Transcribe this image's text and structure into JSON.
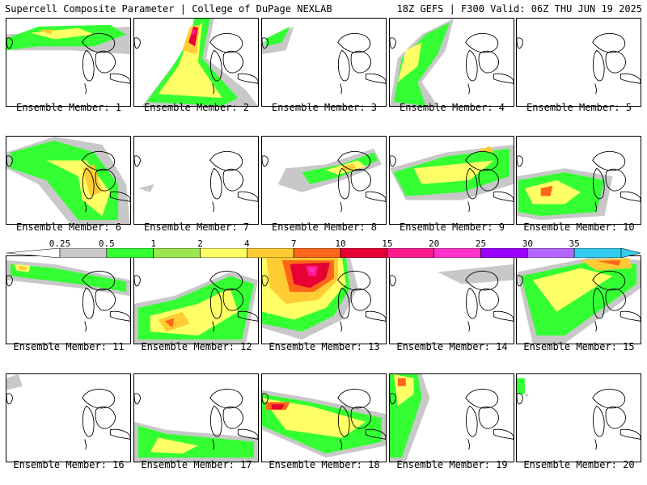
{
  "header": {
    "left": "Supercell Composite Parameter | College of DuPage NEXLAB",
    "right": "18Z GEFS | F300 Valid: 06Z THU JUN 19 2025"
  },
  "colorbar": {
    "labels": [
      "0.25",
      "0.5",
      "1",
      "2",
      "4",
      "7",
      "10",
      "15",
      "20",
      "25",
      "30",
      "35"
    ],
    "colors": [
      "#c8c8c8",
      "#33ff33",
      "#99e64d",
      "#ffff66",
      "#ffcc33",
      "#ff6619",
      "#e60033",
      "#ff1a8c",
      "#ff33cc",
      "#9900ff",
      "#b366ff",
      "#33ccee"
    ]
  },
  "members": [
    {
      "caption": "Ensemble Member: 1"
    },
    {
      "caption": "Ensemble Member: 2"
    },
    {
      "caption": "Ensemble Member: 3"
    },
    {
      "caption": "Ensemble Member: 4"
    },
    {
      "caption": "Ensemble Member: 5"
    },
    {
      "caption": "Ensemble Member: 6"
    },
    {
      "caption": "Ensemble Member: 7"
    },
    {
      "caption": "Ensemble Member: 8"
    },
    {
      "caption": "Ensemble Member: 9"
    },
    {
      "caption": "Ensemble Member: 10"
    },
    {
      "caption": "Ensemble Member: 11"
    },
    {
      "caption": "Ensemble Member: 12"
    },
    {
      "caption": "Ensemble Member: 13"
    },
    {
      "caption": "Ensemble Member: 14"
    },
    {
      "caption": "Ensemble Member: 15"
    },
    {
      "caption": "Ensemble Member: 16"
    },
    {
      "caption": "Ensemble Member: 17"
    },
    {
      "caption": "Ensemble Member: 18"
    },
    {
      "caption": "Ensemble Member: 19"
    },
    {
      "caption": "Ensemble Member: 20"
    }
  ]
}
